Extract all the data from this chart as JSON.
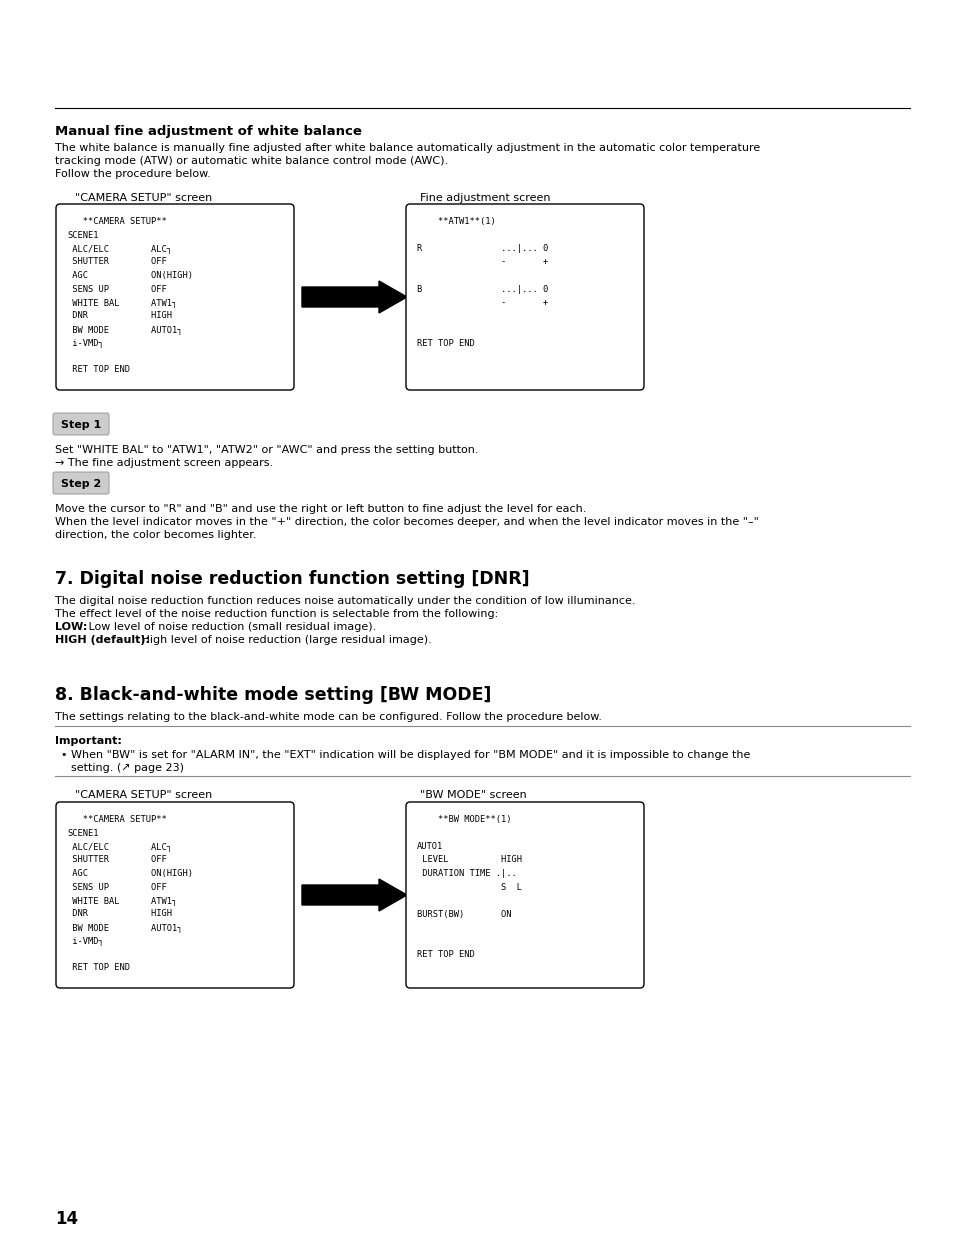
{
  "page_bg": "#ffffff",
  "page_number": "14",
  "section_title_1": "Manual fine adjustment of white balance",
  "para1_line1": "The white balance is manually fine adjusted after white balance automatically adjustment in the automatic color temperature",
  "para1_line2": "tracking mode (ATW) or automatic white balance control mode (AWC).",
  "para1_line3": "Follow the procedure below.",
  "screen_label_1": "\"CAMERA SETUP\" screen",
  "screen_label_2": "Fine adjustment screen",
  "camera_setup_lines": [
    "   **CAMERA SETUP**",
    "SCENE1",
    " ALC/ELC        ALC┐",
    " SHUTTER        OFF",
    " AGC            ON(HIGH)",
    " SENS UP        OFF",
    " WHITE BAL      ATW1┐",
    " DNR            HIGH",
    " BW MODE        AUTO1┐",
    " i-VMD┐",
    "",
    " RET TOP END"
  ],
  "fine_adj_lines": [
    "    **ATW1**(1)",
    "",
    "R               ...|... 0",
    "                -       +",
    "",
    "B               ...|... 0",
    "                -       +",
    "",
    "",
    "RET TOP END"
  ],
  "step1_label": "Step 1",
  "step1_text1": "Set \"WHITE BAL\" to \"ATW1\", \"ATW2\" or \"AWC\" and press the setting button.",
  "step1_text2": "→ The fine adjustment screen appears.",
  "step2_label": "Step 2",
  "step2_text1": "Move the cursor to \"R\" and \"B\" and use the right or left button to fine adjust the level for each.",
  "step2_text2": "When the level indicator moves in the \"+\" direction, the color becomes deeper, and when the level indicator moves in the \"–\"",
  "step2_text3": "direction, the color becomes lighter.",
  "section_title_2": "7. Digital noise reduction function setting [DNR]",
  "dnr_para1": "The digital noise reduction function reduces noise automatically under the condition of low illuminance.",
  "dnr_para2": "The effect level of the noise reduction function is selectable from the following:",
  "dnr_para3_bold": "LOW:",
  "dnr_para3_rest": " Low level of noise reduction (small residual image).",
  "dnr_para4_bold": "HIGH (default):",
  "dnr_para4_rest": " High level of noise reduction (large residual image).",
  "section_title_3": "8. Black-and-white mode setting [BW MODE]",
  "bw_para1": "The settings relating to the black-and-white mode can be configured. Follow the procedure below.",
  "important_label": "Important:",
  "important_bullet": "When \"BW\" is set for \"ALARM IN\", the \"EXT\" indication will be displayed for \"BM MODE\" and it is impossible to change the",
  "important_bullet2": "setting. (↗ page 23)",
  "screen_label_3": "\"CAMERA SETUP\" screen",
  "screen_label_4": "\"BW MODE\" screen",
  "camera_setup_lines2": [
    "   **CAMERA SETUP**",
    "SCENE1",
    " ALC/ELC        ALC┐",
    " SHUTTER        OFF",
    " AGC            ON(HIGH)",
    " SENS UP        OFF",
    " WHITE BAL      ATW1┐",
    " DNR            HIGH",
    " BW MODE        AUTO1┐",
    " i-VMD┐",
    "",
    " RET TOP END"
  ],
  "bw_mode_lines": [
    "    **BW MODE**(1)",
    "",
    "AUTO1",
    " LEVEL          HIGH",
    " DURATION TIME .|..",
    "                S  L",
    "",
    "BURST(BW)       ON",
    "",
    "",
    "RET TOP END"
  ]
}
